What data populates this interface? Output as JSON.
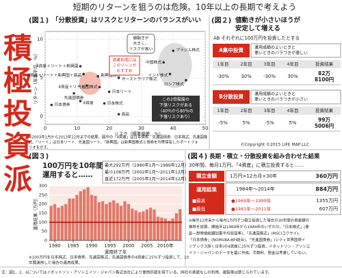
{
  "header": {
    "headline": "短期のリターンを狙うのは危険。10年以上の長期で考えよう",
    "side_title": "積極投資派"
  },
  "chart_data": [
    {
      "type": "scatter",
      "label": "(図１)",
      "title": "「分散投資」はリスクとリターンのバランスがいい",
      "x_label": "リスク（標準偏差、％）",
      "y_label": "リターン（年率平均、％）",
      "xlim": [
        0,
        50
      ],
      "xticks": [
        0,
        10,
        20,
        30,
        40,
        50
      ],
      "ylim": [
        -1,
        11
      ],
      "yticks": [
        0,
        5,
        10
      ],
      "grid": true,
      "color": "#333333",
      "point_labels": [
        "日本債券",
        "先進国債券",
        "4資産",
        "日本株式",
        "商品",
        "日本リート",
        "先進国株式",
        "新興国債券",
        "新興国株式",
        "オーストラリア株式",
        "4資産＋リート＋新興国",
        "4資産＋リート＋新興国＋商品",
        "4資産＋リート",
        "ブラジル株式",
        "中国株式",
        "インド株式",
        "ロシア株式"
      ],
      "x": [
        2,
        9,
        11,
        18.5,
        23,
        20,
        17,
        16.5,
        22,
        23,
        11,
        12,
        13,
        40,
        37,
        39,
        44
      ],
      "values": [
        1.5,
        3,
        2,
        1.7,
        0.3,
        3.2,
        3.8,
        5.2,
        6.3,
        5,
        6.5,
        5.5,
        4,
        8.5,
        7,
        5.5,
        4.7
      ],
      "zone_label": [
        "資産形成には",
        "このゾーンが",
        "おすすめ"
      ],
      "high_risk": [
        "値動きが",
        "大きく、",
        "リスクが高い"
      ],
      "drawdown": [
        "この2倍程度の",
        "下落リスクがある",
        "（40％から80％の",
        "下落リスクあり）"
      ],
      "note": [
        "※2003年1月から2013年12月までの結果。図中の「4資産」は日本債券、先進国債券、日本株式、先進国株",
        "式、「リート」は日本リート、先進国リート、「新興国」は新興国株式と債券を均等保有したポートフォ",
        "リオを示す。"
      ]
    },
    {
      "type": "bar",
      "label": "(図３)",
      "title": [
        "100万円を10年間",
        "運用すると……"
      ],
      "legend": [
        "最大292万円（1980年1月〜1989年12月）",
        "最小108万円（2002年1月〜2011年12月）",
        "直近172万円（2005年1月〜2014年12月）"
      ],
      "y_label": "運用結果（万円）",
      "x_label": "運用終了年",
      "x": [
        1979,
        1980,
        1981,
        1982,
        1983,
        1984,
        1985,
        1986,
        1987,
        1988,
        1989,
        1990,
        1991,
        1992,
        1993,
        1994,
        1995,
        1996,
        1997,
        1998,
        1999,
        2000,
        2001,
        2002,
        2003,
        2004,
        2005,
        2006,
        2007,
        2008,
        2009,
        2010,
        2011,
        2012,
        2013,
        2014
      ],
      "values": [
        190,
        200,
        180,
        190,
        200,
        230,
        230,
        250,
        270,
        280,
        292,
        250,
        245,
        210,
        215,
        200,
        210,
        220,
        205,
        190,
        215,
        200,
        175,
        165,
        155,
        160,
        170,
        180,
        170,
        130,
        125,
        120,
        108,
        120,
        150,
        172
      ],
      "xlim": [
        1978.5,
        2014.5
      ],
      "xticks": [
        1980,
        1985,
        1990,
        1995,
        2000,
        2005,
        {
          "value": 2010,
          "label": "2010年"
        }
      ],
      "ylim": [
        0,
        300
      ],
      "yticks": [
        0,
        50,
        100,
        150,
        200,
        250,
        300
      ],
      "reference_line": 100,
      "color": "#e07a6a",
      "note": [
        "※100万円を日本株式、日本債券、先進国株式、先進国債券の4資産に25％ずつ投資して、10",
        "年間運用した場合の運用成果。"
      ]
    }
  ],
  "fig2": {
    "label": "(図２)",
    "title": [
      "値動きが小さいほうが",
      "安定して増える"
    ],
    "subtitle": "AB それぞれに100万円を投資したとする",
    "columns": [
      "1年目",
      "2年目",
      "3年目",
      "4年目",
      "投資結果"
    ],
    "a": {
      "name": "A集中投資",
      "desc": [
        "運用成績のよいときと",
        "悪いときのバラつきが激しい"
      ],
      "row": [
        "-30%",
        "30%",
        "-30%",
        "30%"
      ],
      "result": [
        "82万",
        "8100円"
      ]
    },
    "b": {
      "name": "B分散投資",
      "desc": [
        "運用成績のよいときと",
        "悪いときのバラつきが小さい"
      ],
      "row": [
        "-5%",
        "5%",
        "-5%",
        "5%"
      ],
      "result": [
        "99万",
        "5006円"
      ]
    },
    "copyright": "©Copyright ©2015 LIFE MAP,LLC"
  },
  "fig4": {
    "label": "(図４)",
    "title": "長期・積立・分散投資を組み合わせた結果",
    "subtitle": "30年間、毎月1万円、「4資産」に積立投資すると……",
    "deposit": {
      "head": "積立金額",
      "detail": "1万円×12カ月×30年",
      "amount": "360万円"
    },
    "result": {
      "head": "運用結果",
      "period": "1984年〜2014年",
      "amount": "884万円",
      "best": {
        "tag": "■最高",
        "period": "●1969年〜1999年",
        "amount": "1355万円"
      },
      "worst": {
        "tag": "■最低",
        "period": "●1981年〜2011年",
        "amount": "607万円"
      }
    },
    "note": [
      "※毎年12月末から毎月1万円ずつ積立投資した場合の30年間の資産額の",
      "推移を試算。開始年は1969年から1984年のいずれか。「日本株式」(東",
      "証一部時価総額加重平均収益率)、「先進国株式」(MSCIコクサイ)、",
      "「日本債券」(NOMURA-BPI総合)、「先進国債券」(シティ世界国債イ",
      "ンデックス除く日本)の4資産に25％ずつ投資。イボットソン・アソシエ",
      "イツ・ジャパンのデータを基に作成。手数料、税金は考慮していない。"
    ]
  },
  "footer": "注：図1、2、4についてはイボットソン・アソシエイツ・ジャパン株式会社により使用許諾を得ている。同社の承諾なしの利用、複製等は禁じられています。"
}
